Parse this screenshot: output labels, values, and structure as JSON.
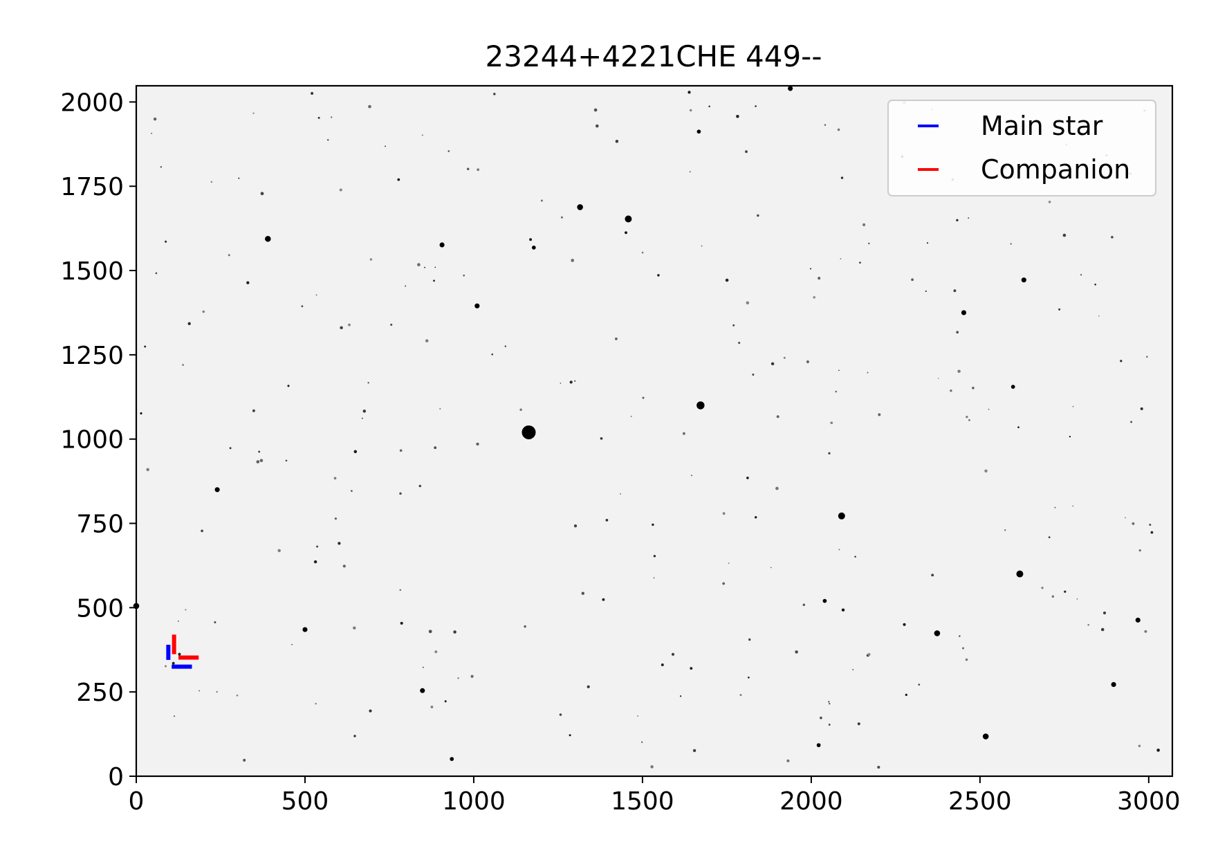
{
  "chart_data": {
    "type": "scatter",
    "title": "23244+4221CHE 449--",
    "xlabel": "",
    "ylabel": "",
    "xlim": [
      0,
      3070
    ],
    "ylim": [
      0,
      2048
    ],
    "x_ticks": [
      "0",
      "500",
      "1000",
      "1500",
      "2000",
      "2500",
      "3000"
    ],
    "y_ticks": [
      "0",
      "250",
      "500",
      "750",
      "1000",
      "1250",
      "1500",
      "1750",
      "2000"
    ],
    "grid": false,
    "legend_position": "top-right",
    "background": "#f2f2f2",
    "star_color": "#000000",
    "bright_stars": [
      {
        "x": 1163,
        "y": 1020,
        "r": 14
      },
      {
        "x": 1672,
        "y": 1100,
        "r": 8
      },
      {
        "x": 1458,
        "y": 1653,
        "r": 7
      },
      {
        "x": 2090,
        "y": 772,
        "r": 7
      },
      {
        "x": 2618,
        "y": 600,
        "r": 7
      },
      {
        "x": 1315,
        "y": 1688,
        "r": 6
      },
      {
        "x": 390,
        "y": 1594,
        "r": 6
      },
      {
        "x": 2373,
        "y": 424,
        "r": 6
      },
      {
        "x": 2517,
        "y": 118,
        "r": 6
      },
      {
        "x": 0,
        "y": 505,
        "r": 6
      },
      {
        "x": 1010,
        "y": 1395,
        "r": 5
      },
      {
        "x": 906,
        "y": 1576,
        "r": 5
      },
      {
        "x": 1938,
        "y": 2040,
        "r": 5
      },
      {
        "x": 2630,
        "y": 1472,
        "r": 5
      },
      {
        "x": 2452,
        "y": 1375,
        "r": 5
      },
      {
        "x": 2968,
        "y": 463,
        "r": 5
      },
      {
        "x": 2896,
        "y": 272,
        "r": 5
      },
      {
        "x": 240,
        "y": 850,
        "r": 5
      },
      {
        "x": 500,
        "y": 435,
        "r": 5
      },
      {
        "x": 848,
        "y": 254,
        "r": 5
      },
      {
        "x": 2598,
        "y": 1155,
        "r": 4
      },
      {
        "x": 2040,
        "y": 520,
        "r": 4
      },
      {
        "x": 2022,
        "y": 92,
        "r": 4
      },
      {
        "x": 935,
        "y": 51,
        "r": 4
      },
      {
        "x": 1178,
        "y": 1568,
        "r": 4
      },
      {
        "x": 1667,
        "y": 1912,
        "r": 4
      }
    ],
    "series": [
      {
        "name": "Main star",
        "color": "#0000ff",
        "marker": {
          "x": 110,
          "y": 335
        },
        "segments": [
          {
            "x1": 95,
            "y1": 345,
            "x2": 95,
            "y2": 390
          },
          {
            "x1": 105,
            "y1": 325,
            "x2": 165,
            "y2": 325
          }
        ]
      },
      {
        "name": "Companion",
        "color": "#ff0000",
        "marker": {
          "x": 128,
          "y": 362
        },
        "segments": [
          {
            "x1": 112,
            "y1": 362,
            "x2": 112,
            "y2": 420
          },
          {
            "x1": 125,
            "y1": 352,
            "x2": 185,
            "y2": 352
          }
        ]
      }
    ]
  }
}
